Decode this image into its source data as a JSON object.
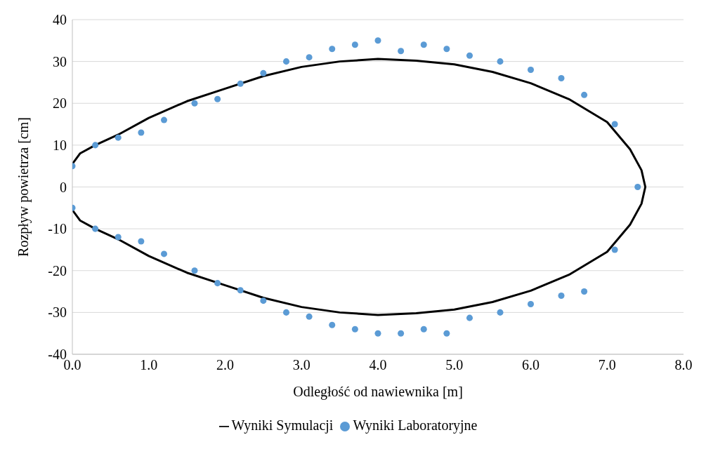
{
  "chart_data": {
    "type": "scatter",
    "xlabel": "Odległość od nawiewnika [m]",
    "ylabel": "Rozpływ powietrza [cm]",
    "xlim": [
      0,
      8
    ],
    "xticks": [
      {
        "value": 0,
        "label": "0.0"
      },
      {
        "value": 1,
        "label": "1.0"
      },
      {
        "value": 2,
        "label": "2.0"
      },
      {
        "value": 3,
        "label": "3.0"
      },
      {
        "value": 4,
        "label": "4.0"
      },
      {
        "value": 5,
        "label": "5.0"
      },
      {
        "value": 6,
        "label": "6.0"
      },
      {
        "value": 7,
        "label": "7.0"
      },
      {
        "value": 8,
        "label": "8.0"
      }
    ],
    "ylim": [
      -40,
      40
    ],
    "yticks": [
      -40,
      -30,
      -20,
      -10,
      0,
      10,
      20,
      30,
      40
    ],
    "grid": "y",
    "legend": "bottom",
    "series": [
      {
        "name": "Wyniki Symulacji",
        "type": "line",
        "color": "#000000",
        "marker": "none",
        "line_style": "solid",
        "x": [
          0,
          0.1,
          0.3,
          0.6,
          1.0,
          1.5,
          2.0,
          2.5,
          3.0,
          3.5,
          4.0,
          4.5,
          5.0,
          5.5,
          6.0,
          6.5,
          7.0,
          7.3,
          7.45,
          7.5,
          7.45,
          7.3,
          7.0,
          6.5,
          6.0,
          5.5,
          5.0,
          4.5,
          4.0,
          3.5,
          3.0,
          2.5,
          2.0,
          1.5,
          1.0,
          0.6,
          0.3,
          0.1,
          0
        ],
        "values": [
          5.5,
          8,
          10,
          12.5,
          16.5,
          20.5,
          23.5,
          26.5,
          28.7,
          30,
          30.6,
          30.2,
          29.3,
          27.5,
          24.8,
          21,
          15.5,
          9,
          4,
          0,
          -4,
          -9,
          -15.5,
          -21,
          -24.8,
          -27.5,
          -29.3,
          -30.2,
          -30.6,
          -30,
          -28.7,
          -26.5,
          -23.5,
          -20.5,
          -16.5,
          -12.5,
          -10,
          -8,
          -5.5
        ]
      },
      {
        "name": "Wyniki Laboratoryjne",
        "color": "#5b9bd5",
        "marker": "circle",
        "x": [
          0,
          0.3,
          0.6,
          0.9,
          1.2,
          1.6,
          1.9,
          2.2,
          2.5,
          2.8,
          3.1,
          3.4,
          3.7,
          4.0,
          4.3,
          4.6,
          4.9,
          5.2,
          5.6,
          6.0,
          6.4,
          6.7,
          7.1,
          7.4,
          7.1,
          6.7,
          6.4,
          6.0,
          5.6,
          5.2,
          4.9,
          4.6,
          4.3,
          4.0,
          3.7,
          3.4,
          3.1,
          2.8,
          2.5,
          2.2,
          1.9,
          1.6,
          1.2,
          0.9,
          0.6,
          0.3,
          0
        ],
        "values": [
          5,
          10,
          11.8,
          13,
          16,
          20,
          21,
          24.7,
          27.2,
          30,
          31,
          33,
          34,
          35,
          32.5,
          34,
          33,
          31.4,
          30,
          28,
          26,
          22,
          15,
          0,
          -15,
          -25,
          -26,
          -28,
          -30,
          -31.3,
          -35,
          -34,
          -35,
          -35,
          -34,
          -33,
          -31,
          -30,
          -27.2,
          -24.7,
          -23,
          -20,
          -16,
          -13,
          -12,
          -10,
          -5
        ]
      }
    ]
  }
}
